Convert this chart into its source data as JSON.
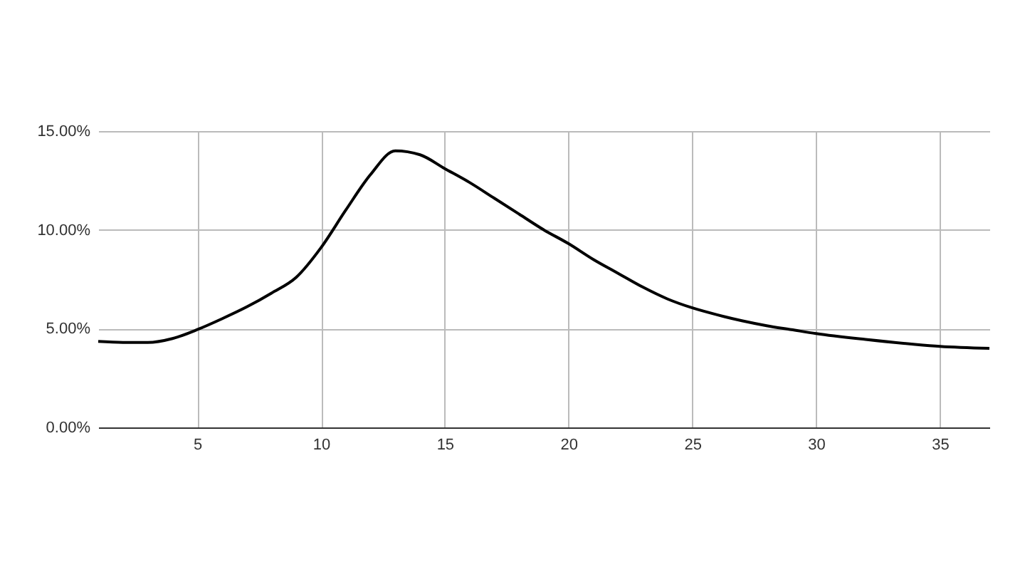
{
  "chart_data": {
    "type": "line",
    "x": [
      1,
      2,
      3,
      4,
      5,
      6,
      7,
      8,
      9,
      10,
      11,
      12,
      13,
      14,
      15,
      16,
      17,
      18,
      19,
      20,
      21,
      22,
      23,
      24,
      25,
      26,
      27,
      28,
      29,
      30,
      32,
      34,
      35,
      37
    ],
    "series": [
      {
        "color": "#000000",
        "values": [
          4.35,
          4.3,
          4.3,
          4.5,
          4.95,
          5.5,
          6.1,
          6.8,
          7.6,
          9.1,
          11.0,
          12.8,
          14.0,
          13.8,
          13.1,
          12.4,
          11.6,
          10.8,
          10.0,
          9.3,
          8.5,
          7.8,
          7.1,
          6.5,
          6.05,
          5.7,
          5.4,
          5.15,
          4.95,
          4.75,
          4.45,
          4.2,
          4.1,
          4.0
        ]
      }
    ],
    "xlim": [
      1,
      37
    ],
    "xticks": [
      5,
      10,
      15,
      20,
      25,
      30,
      35
    ],
    "ylim": [
      0,
      15
    ],
    "yticks": [
      {
        "value": 0,
        "label": "0.00%"
      },
      {
        "value": 5,
        "label": "5.00%"
      },
      {
        "value": 10,
        "label": "10.00%"
      },
      {
        "value": 15,
        "label": "15.00%"
      }
    ],
    "grid": true,
    "marker": "none",
    "line_style": "solid",
    "legend": false
  }
}
